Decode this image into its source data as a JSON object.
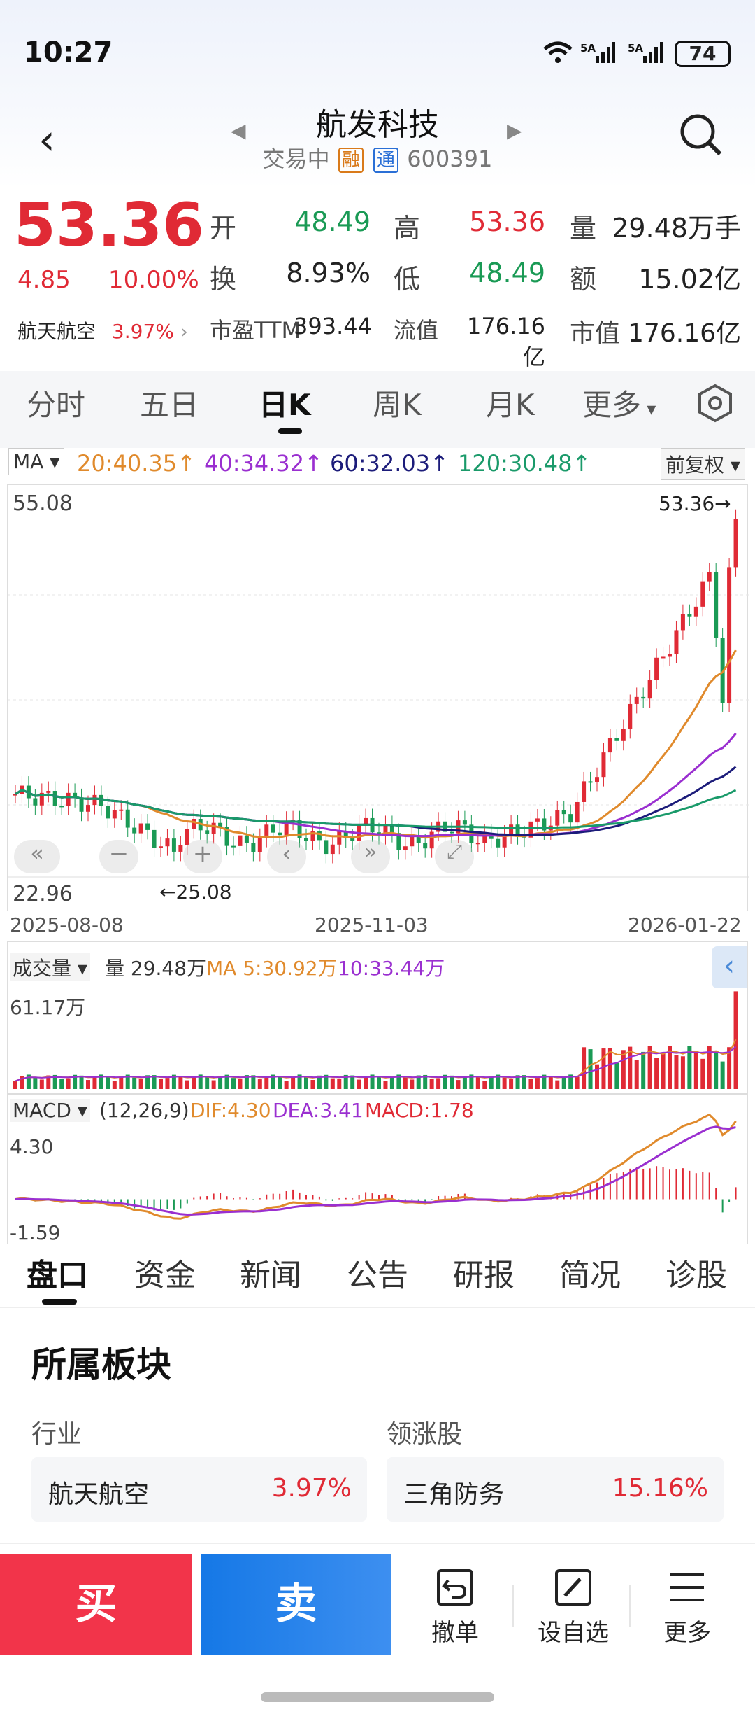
{
  "status": {
    "time": "10:27",
    "battery": "74",
    "signal1": "5A",
    "signal2": "5A"
  },
  "stock": {
    "name": "航发科技",
    "state": "交易中",
    "tag1": "融",
    "tag2": "通",
    "code": "600391",
    "price": "53.36",
    "change": "4.85",
    "change_pct": "10.00%",
    "sector": "航天航空",
    "sector_pct": "3.97%",
    "open_lbl": "开",
    "open": "48.49",
    "high_lbl": "高",
    "high": "53.36",
    "vol_lbl": "量",
    "vol": "29.48万手",
    "turn_lbl": "换",
    "turn": "8.93%",
    "low_lbl": "低",
    "low": "48.49",
    "amt_lbl": "额",
    "amt": "15.02亿",
    "pe_lbl": "市盈TTM",
    "pe": "393.44",
    "float_lbl": "流值",
    "float": "176.16亿",
    "cap_lbl": "市值",
    "cap": "176.16亿"
  },
  "ktabs": [
    "分时",
    "五日",
    "日K",
    "周K",
    "月K",
    "更多"
  ],
  "ma": {
    "label": "MA",
    "ma20": "20:40.35↑",
    "ma40": "40:34.32↑",
    "ma60": "60:32.03↑",
    "ma120": "120:30.48↑",
    "adj": "前复权"
  },
  "kchart": {
    "high": "55.08",
    "low": "22.96",
    "last": "53.36→",
    "min": "←25.08",
    "d1": "2025-08-08",
    "d2": "2025-11-03",
    "d3": "2026-01-22"
  },
  "volume": {
    "label": "成交量",
    "v": "量 29.48万",
    "ma5": "MA 5:30.92万",
    "ma10": "10:33.44万",
    "max": "61.17万"
  },
  "macd": {
    "label": "MACD",
    "params": "(12,26,9)",
    "dif": "DIF:4.30",
    "dea": "DEA:3.41",
    "macd": "MACD:1.78",
    "max": "4.30",
    "min": "-1.59"
  },
  "tabs": [
    "盘口",
    "资金",
    "新闻",
    "公告",
    "研报",
    "简况",
    "诊股"
  ],
  "sectors": {
    "title": "所属板块",
    "industry_lbl": "行业",
    "leader_lbl": "领涨股",
    "industry": "航天航空",
    "industry_pct": "3.97%",
    "leader": "三角防务",
    "leader_pct": "15.16%"
  },
  "actions": {
    "buy": "买",
    "sell": "卖",
    "cancel": "撤单",
    "watch": "设自选",
    "more": "更多"
  },
  "colors": {
    "up": "#e02a35",
    "down": "#1a9a55",
    "ma20": "#e08a2c",
    "ma40": "#9a2fd0",
    "ma60": "#1c1c7a",
    "ma120": "#1a9a6a"
  }
}
